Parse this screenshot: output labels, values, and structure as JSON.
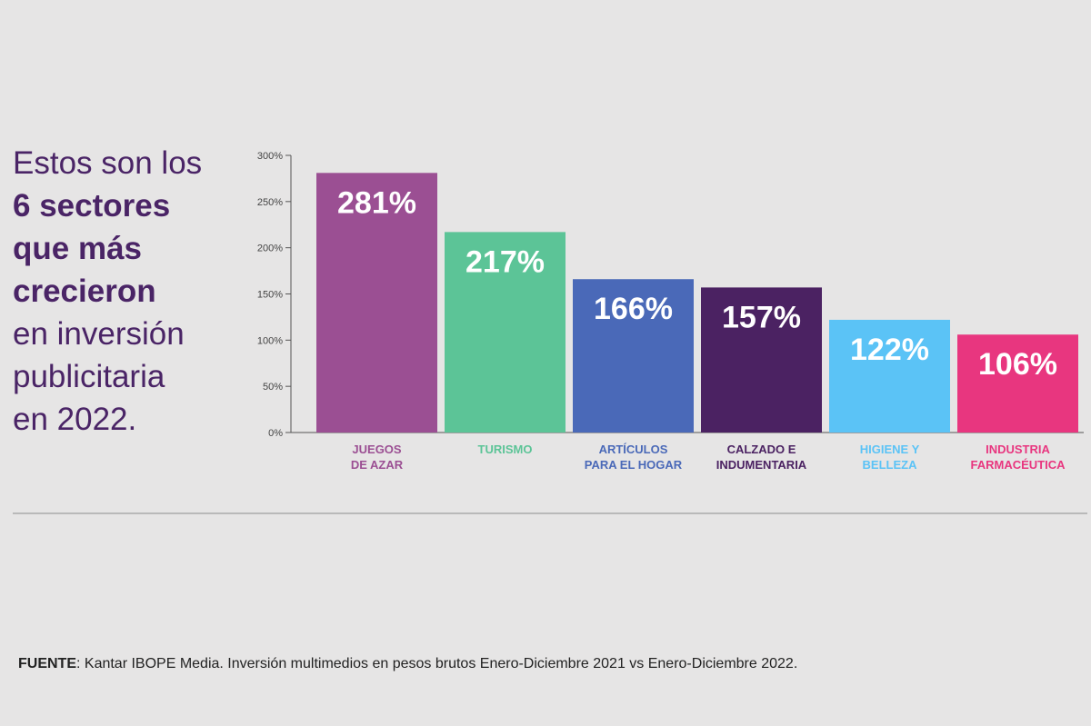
{
  "headline": {
    "line1": "Estos son los",
    "line2": "6 sectores",
    "line3": "que más",
    "line4": "crecieron",
    "line5": "en inversión",
    "line6": "publicitaria",
    "line7": "en 2022."
  },
  "chart_data": {
    "type": "bar",
    "title": "Estos son los 6 sectores que más crecieron en inversión publicitaria en 2022.",
    "categories": [
      [
        "JUEGOS",
        "DE AZAR"
      ],
      [
        "TURISMO"
      ],
      [
        "ARTÍCULOS",
        "PARA EL HOGAR"
      ],
      [
        "CALZADO E",
        "INDUMENTARIA"
      ],
      [
        "HIGIENE Y",
        "BELLEZA"
      ],
      [
        "INDUSTRIA",
        "FARMACÉUTICA"
      ]
    ],
    "values": [
      281,
      217,
      166,
      157,
      122,
      106
    ],
    "value_labels": [
      "281%",
      "217%",
      "166%",
      "157%",
      "122%",
      "106%"
    ],
    "colors": [
      "#9b4f93",
      "#5cc497",
      "#4a69b8",
      "#4b2262",
      "#5bc3f6",
      "#e8367f"
    ],
    "yticks": [
      "0%",
      "50%",
      "100%",
      "150%",
      "200%",
      "250%",
      "300%"
    ],
    "ytick_values": [
      0,
      50,
      100,
      150,
      200,
      250,
      300
    ],
    "ylim": [
      0,
      300
    ],
    "xlabel": "",
    "ylabel": "",
    "grid": false
  },
  "source": {
    "label": "FUENTE",
    "text": ": Kantar IBOPE Media. Inversión multimedios en pesos brutos Enero-Diciembre 2021 vs Enero-Diciembre 2022."
  }
}
